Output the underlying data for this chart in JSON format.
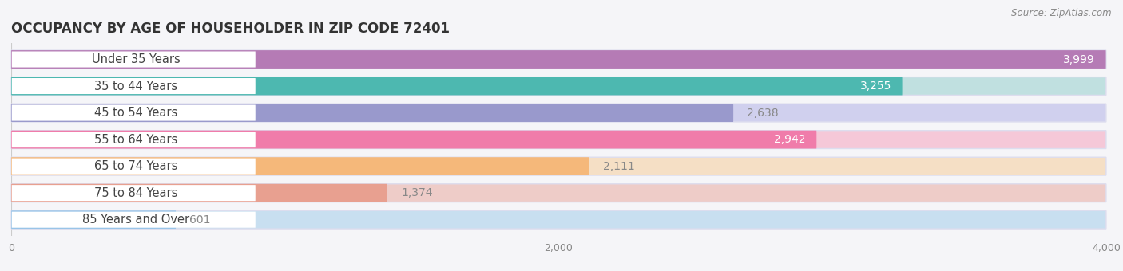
{
  "title": "OCCUPANCY BY AGE OF HOUSEHOLDER IN ZIP CODE 72401",
  "source": "Source: ZipAtlas.com",
  "categories": [
    "Under 35 Years",
    "35 to 44 Years",
    "45 to 54 Years",
    "55 to 64 Years",
    "65 to 74 Years",
    "75 to 84 Years",
    "85 Years and Over"
  ],
  "values": [
    3999,
    3255,
    2638,
    2942,
    2111,
    1374,
    601
  ],
  "bar_colors": [
    "#b57bb5",
    "#4db8b0",
    "#9999cc",
    "#f07caa",
    "#f5b87a",
    "#e8a090",
    "#99c4e8"
  ],
  "bar_bg_colors": [
    "#e0d0e8",
    "#c0e0e0",
    "#d0d0ee",
    "#f5c8d8",
    "#f5dfc5",
    "#eeccc8",
    "#c8dff0"
  ],
  "xlim": [
    0,
    4000
  ],
  "xticks": [
    0,
    2000,
    4000
  ],
  "fig_bg_color": "#f5f5f8",
  "title_fontsize": 12,
  "label_fontsize": 10.5,
  "value_fontsize": 10
}
